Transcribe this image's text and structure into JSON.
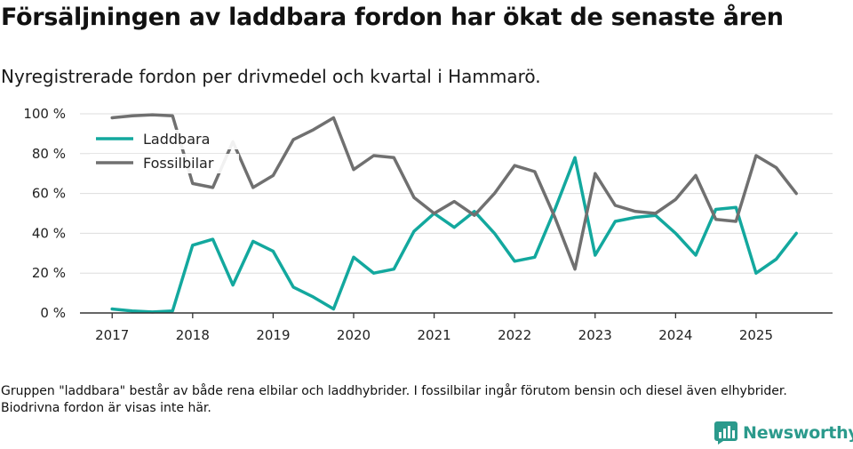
{
  "header": {
    "title": "Försäljningen av laddbara fordon har ökat de senaste åren",
    "subtitle": "Nyregistrerade fordon per drivmedel och kvartal i Hammarö."
  },
  "footnote": "Gruppen \"laddbara\" består av både rena elbilar och laddhybrider. I fossilbilar ingår förutom bensin och diesel även elhybrider. Biodrivna fordon är visas inte här.",
  "brand": {
    "name": "Newsworthy",
    "icon": "bar-chart-icon",
    "color": "#2b9a8c"
  },
  "chart_data": {
    "type": "line",
    "title": "Försäljningen av laddbara fordon har ökat de senaste åren",
    "xlabel": "",
    "ylabel": "",
    "x": [
      2017,
      2017.25,
      2017.5,
      2017.75,
      2018,
      2018.25,
      2018.5,
      2018.75,
      2019,
      2019.25,
      2019.5,
      2019.75,
      2020,
      2020.25,
      2020.5,
      2020.75,
      2021,
      2021.25,
      2021.5,
      2021.75,
      2022,
      2022.25,
      2022.5,
      2022.75,
      2023,
      2023.25,
      2023.5,
      2023.75,
      2024,
      2024.25,
      2024.5,
      2024.75,
      2025,
      2025.25,
      2025.5
    ],
    "xlim": [
      2016.6,
      2025.95
    ],
    "ylim": [
      0,
      100
    ],
    "x_ticks": [
      2017,
      2018,
      2019,
      2020,
      2021,
      2022,
      2023,
      2024,
      2025
    ],
    "x_tick_labels": [
      "2017",
      "2018",
      "2019",
      "2020",
      "2021",
      "2022",
      "2023",
      "2024",
      "2025"
    ],
    "y_ticks": [
      0,
      20,
      40,
      60,
      80,
      100
    ],
    "y_tick_labels": [
      "0 %",
      "20 %",
      "40 %",
      "60 %",
      "80 %",
      "100 %"
    ],
    "grid": true,
    "legend_position": "top-left",
    "series": [
      {
        "name": "Laddbara",
        "color": "#13a89e",
        "values": [
          2,
          1,
          0.5,
          1,
          34,
          37,
          14,
          36,
          31,
          13,
          8,
          2,
          28,
          20,
          22,
          41,
          50,
          43,
          51,
          40,
          26,
          28,
          52,
          78,
          29,
          46,
          48,
          49,
          40,
          29,
          52,
          53,
          20,
          27,
          40
        ]
      },
      {
        "name": "Fossilbilar",
        "color": "#707070",
        "values": [
          98,
          99,
          99.5,
          99,
          65,
          63,
          86,
          63,
          69,
          87,
          92,
          98,
          72,
          79,
          78,
          58,
          50,
          56,
          49,
          60,
          74,
          71,
          48,
          22,
          70,
          54,
          51,
          50,
          57,
          69,
          47,
          46,
          79,
          73,
          60
        ]
      }
    ]
  }
}
